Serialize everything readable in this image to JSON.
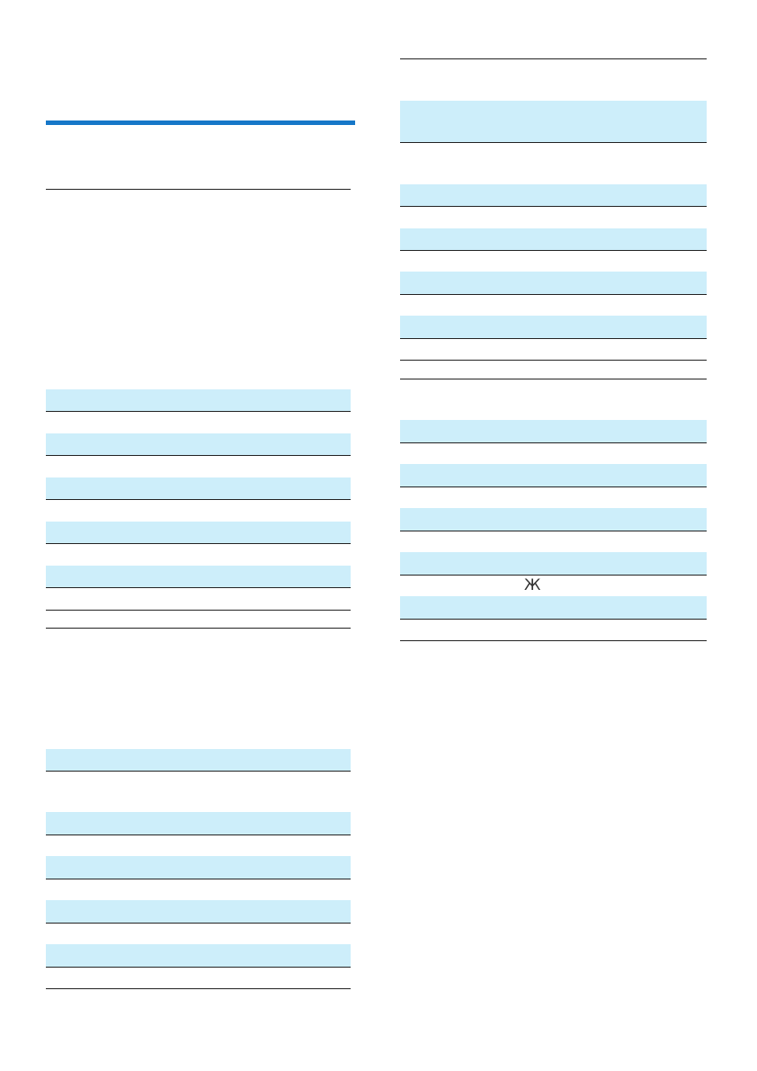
{
  "header": {
    "accent_color": "#1677c8"
  },
  "tables": {
    "shade_color": "#cdeefa"
  },
  "right_table": {
    "symbol_text": "Ж"
  }
}
